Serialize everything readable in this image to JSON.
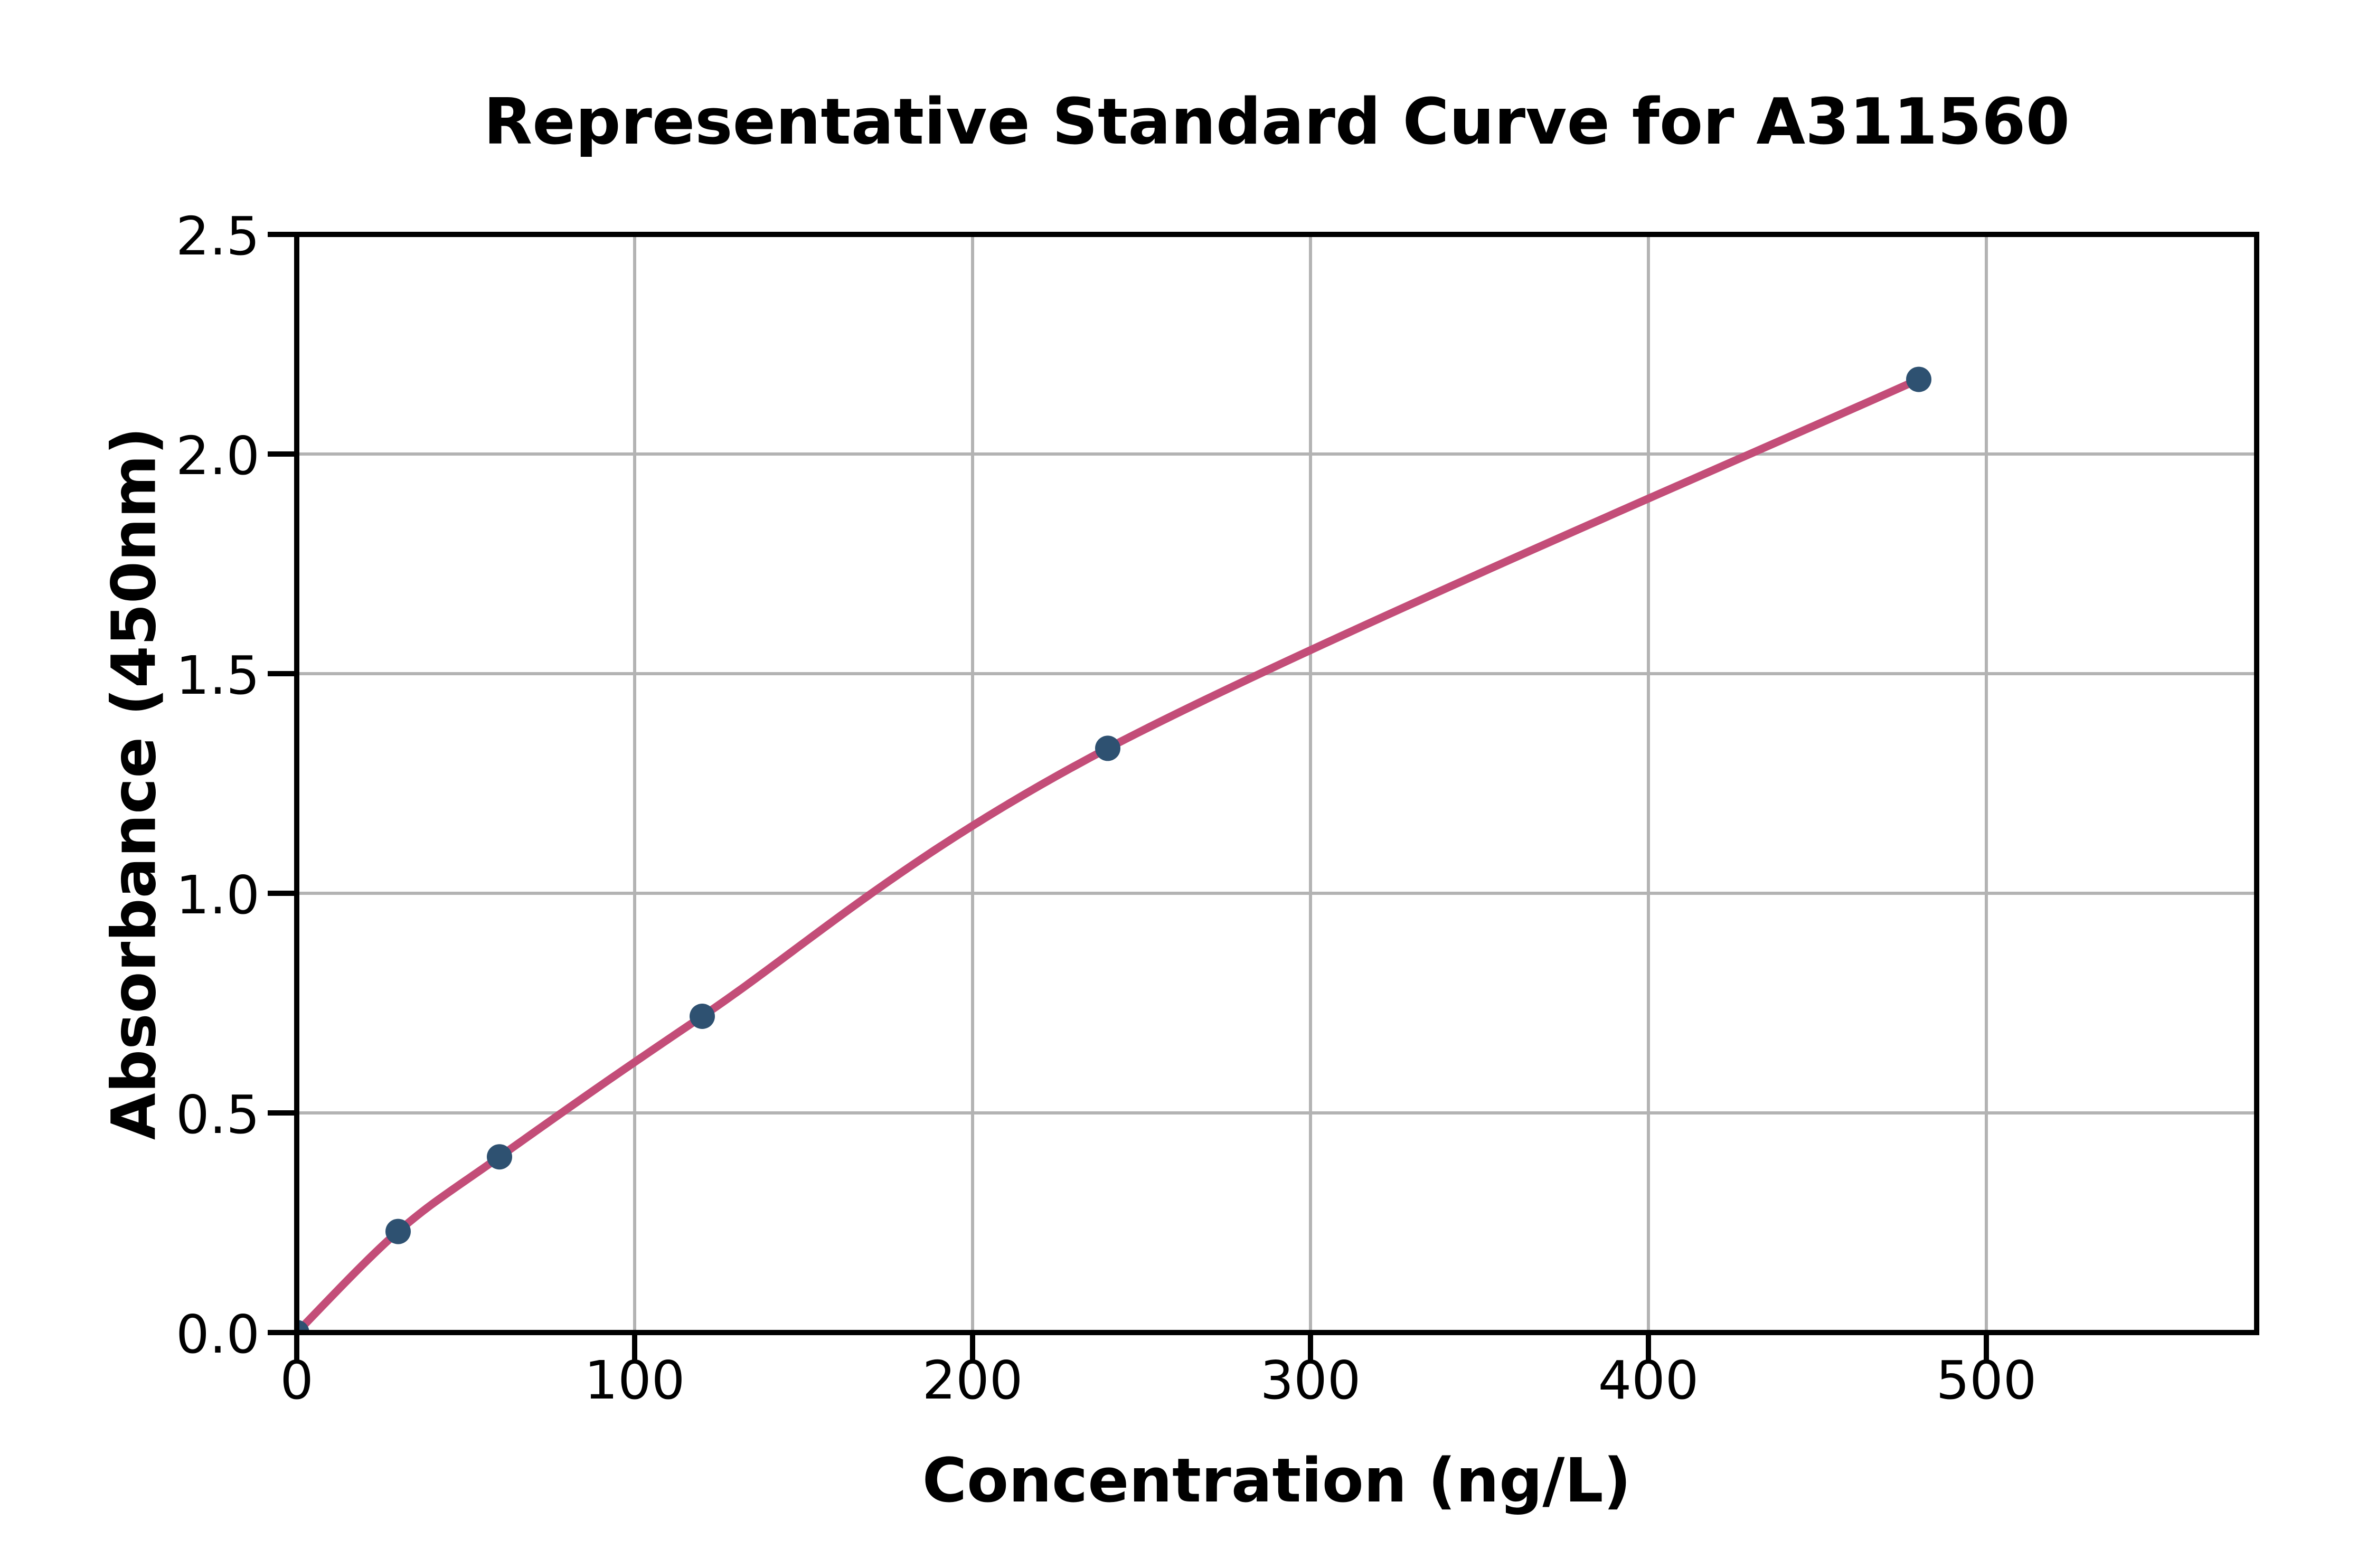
{
  "chart_data": {
    "type": "line",
    "title": "Representative Standard Curve for A311560",
    "xlabel": "Concentration (ng/L)",
    "ylabel": "Absorbance (450nm)",
    "series": [
      {
        "name": "standard-curve",
        "x": [
          0,
          30,
          60,
          120,
          240,
          480
        ],
        "y": [
          0.0,
          0.23,
          0.4,
          0.72,
          1.33,
          2.17
        ]
      }
    ],
    "xticks": {
      "values": [
        0,
        100,
        200,
        300,
        400,
        500
      ],
      "labels": [
        "0",
        "100",
        "200",
        "300",
        "400",
        "500"
      ]
    },
    "yticks": {
      "values": [
        0,
        0.5,
        1.0,
        1.5,
        2.0,
        2.5
      ],
      "labels": [
        "0.0",
        "0.5",
        "1.0",
        "1.5",
        "2.0",
        "2.5"
      ]
    },
    "xlim": [
      0,
      580
    ],
    "ylim": [
      0,
      2.5
    ],
    "grid": true,
    "legend_position": "none",
    "marker_shape": "circle",
    "colors": {
      "curve": "#c34d78",
      "marker": "#2e5171",
      "grid": "#b3b3b3",
      "spine": "#000000",
      "text": "#000000",
      "background": "#ffffff"
    }
  }
}
